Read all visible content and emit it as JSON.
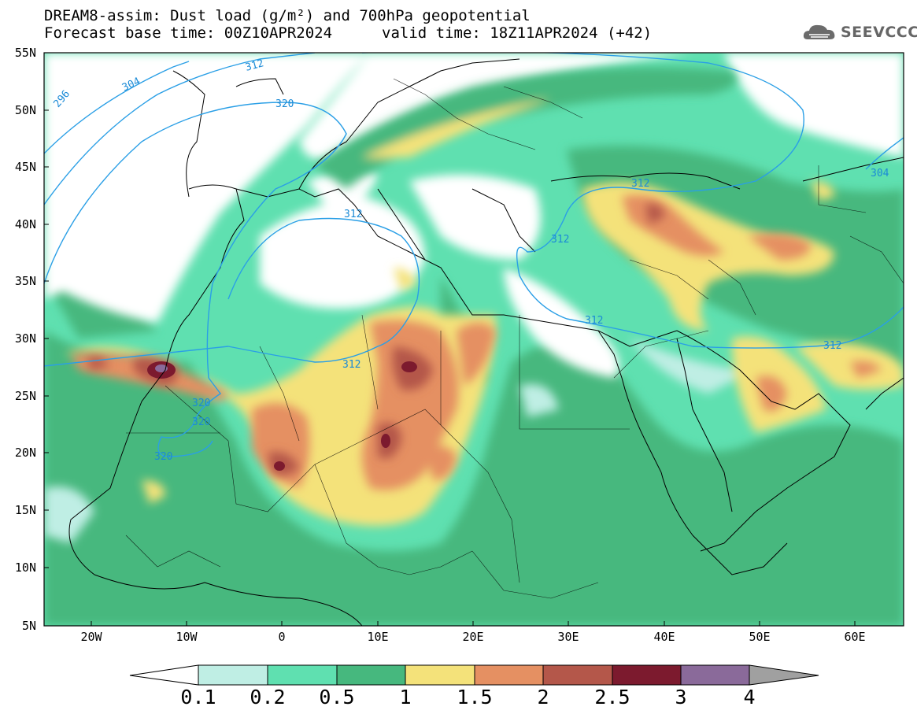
{
  "title": {
    "line1": "DREAM8-assim: Dust load (g/m²) and 700hPa geopotential",
    "line2_left": "Forecast base time: 00Z10APR2024",
    "line2_right": "valid time: 18Z11APR2024 (+42)"
  },
  "logo": {
    "text": "SEEVCCC",
    "icon": "cloud-icon"
  },
  "map": {
    "lon_range": [
      -25,
      65
    ],
    "lat_range": [
      5,
      55
    ],
    "lat_labels": [
      "55N",
      "50N",
      "45N",
      "40N",
      "35N",
      "30N",
      "25N",
      "20N",
      "15N",
      "10N",
      "5N"
    ],
    "lon_labels": [
      "20W",
      "10W",
      "0",
      "10E",
      "20E",
      "30E",
      "40E",
      "50E",
      "60E"
    ],
    "contour_labels": [
      "296",
      "304",
      "312",
      "320",
      "312",
      "320",
      "312",
      "312",
      "312",
      "320",
      "320",
      "320",
      "312",
      "304",
      "312"
    ],
    "background_color": "#5ec49c"
  },
  "colorbar": {
    "levels": [
      "0.1",
      "0.2",
      "0.5",
      "1",
      "1.5",
      "2",
      "2.5",
      "3",
      "4"
    ],
    "colors": [
      "#bfeee4",
      "#5fe0b0",
      "#46b87e",
      "#f4e27a",
      "#e59062",
      "#b4574a",
      "#7c1a2e",
      "#8a6a9a"
    ],
    "over_color": "#a0a0a0",
    "under_color": "#ffffff"
  }
}
